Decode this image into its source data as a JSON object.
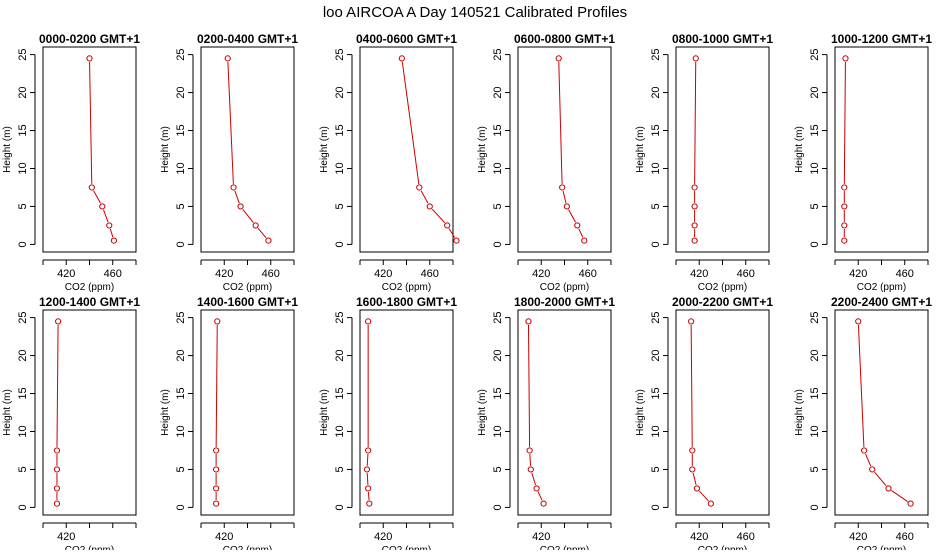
{
  "figure": {
    "title": "loo AIRCOA A  Day 140521  Calibrated Profiles",
    "line_color": "#cc0000"
  },
  "chart_data": [
    {
      "type": "line",
      "title": "0000-0200 GMT+1",
      "xlabel": "CO2 (ppm)",
      "ylabel": "Height (m)",
      "xlim": [
        400,
        480
      ],
      "ylim": [
        0,
        25
      ],
      "xticks": [
        420,
        460
      ],
      "yticks": [
        0,
        5,
        10,
        15,
        20,
        25
      ],
      "x": [
        440,
        442,
        451,
        457,
        461
      ],
      "y": [
        24.5,
        7.5,
        5,
        2.5,
        0.5
      ]
    },
    {
      "type": "line",
      "title": "0200-0400 GMT+1",
      "xlabel": "CO2 (ppm)",
      "ylabel": "Height (m)",
      "xlim": [
        400,
        480
      ],
      "ylim": [
        0,
        25
      ],
      "xticks": [
        420,
        460
      ],
      "yticks": [
        0,
        5,
        10,
        15,
        20,
        25
      ],
      "x": [
        423,
        428,
        434,
        447,
        458
      ],
      "y": [
        24.5,
        7.5,
        5,
        2.5,
        0.5
      ]
    },
    {
      "type": "line",
      "title": "0400-0600 GMT+1",
      "xlabel": "CO2 (ppm)",
      "ylabel": "Height (m)",
      "xlim": [
        400,
        480
      ],
      "ylim": [
        0,
        25
      ],
      "xticks": [
        420,
        460
      ],
      "yticks": [
        0,
        5,
        10,
        15,
        20,
        25
      ],
      "x": [
        436,
        451,
        460,
        475,
        483
      ],
      "y": [
        24.5,
        7.5,
        5,
        2.5,
        0.5
      ]
    },
    {
      "type": "line",
      "title": "0600-0800 GMT+1",
      "xlabel": "CO2 (ppm)",
      "ylabel": "Height (m)",
      "xlim": [
        400,
        480
      ],
      "ylim": [
        0,
        25
      ],
      "xticks": [
        420,
        460
      ],
      "yticks": [
        0,
        5,
        10,
        15,
        20,
        25
      ],
      "x": [
        435,
        438,
        442,
        451,
        457
      ],
      "y": [
        24.5,
        7.5,
        5,
        2.5,
        0.5
      ]
    },
    {
      "type": "line",
      "title": "0800-1000 GMT+1",
      "xlabel": "CO2 (ppm)",
      "ylabel": "Height (m)",
      "xlim": [
        400,
        480
      ],
      "ylim": [
        0,
        25
      ],
      "xticks": [
        420,
        460
      ],
      "yticks": [
        0,
        5,
        10,
        15,
        20,
        25
      ],
      "x": [
        417,
        416,
        416,
        416,
        416
      ],
      "y": [
        24.5,
        7.5,
        5,
        2.5,
        0.5
      ]
    },
    {
      "type": "line",
      "title": "1000-1200 GMT+1",
      "xlabel": "CO2 (ppm)",
      "ylabel": "Height (m)",
      "xlim": [
        400,
        480
      ],
      "ylim": [
        0,
        25
      ],
      "xticks": [
        420,
        460
      ],
      "yticks": [
        0,
        5,
        10,
        15,
        20,
        25
      ],
      "x": [
        409,
        408,
        408,
        408,
        408
      ],
      "y": [
        24.5,
        7.5,
        5,
        2.5,
        0.5
      ]
    },
    {
      "type": "line",
      "title": "1200-1400 GMT+1",
      "xlabel": "CO2 (ppm)",
      "ylabel": "Height (m)",
      "xlim": [
        400,
        480
      ],
      "ylim": [
        0,
        25
      ],
      "xticks": [
        420
      ],
      "yticks": [
        0,
        5,
        10,
        15,
        20,
        25
      ],
      "x": [
        413,
        412,
        412,
        412,
        412
      ],
      "y": [
        24.5,
        7.5,
        5,
        2.5,
        0.5
      ]
    },
    {
      "type": "line",
      "title": "1400-1600 GMT+1",
      "xlabel": "CO2 (ppm)",
      "ylabel": "Height (m)",
      "xlim": [
        400,
        480
      ],
      "ylim": [
        0,
        25
      ],
      "xticks": [
        420
      ],
      "yticks": [
        0,
        5,
        10,
        15,
        20,
        25
      ],
      "x": [
        414,
        413,
        413,
        413,
        413
      ],
      "y": [
        24.5,
        7.5,
        5,
        2.5,
        0.5
      ]
    },
    {
      "type": "line",
      "title": "1600-1800 GMT+1",
      "xlabel": "CO2 (ppm)",
      "ylabel": "Height (m)",
      "xlim": [
        400,
        480
      ],
      "ylim": [
        0,
        25
      ],
      "xticks": [
        420
      ],
      "yticks": [
        0,
        5,
        10,
        15,
        20,
        25
      ],
      "x": [
        407,
        407,
        406,
        407,
        408
      ],
      "y": [
        24.5,
        7.5,
        5,
        2.5,
        0.5
      ]
    },
    {
      "type": "line",
      "title": "1800-2000 GMT+1",
      "xlabel": "CO2 (ppm)",
      "ylabel": "Height (m)",
      "xlim": [
        400,
        480
      ],
      "ylim": [
        0,
        25
      ],
      "xticks": [
        420
      ],
      "yticks": [
        0,
        5,
        10,
        15,
        20,
        25
      ],
      "x": [
        409,
        410,
        411,
        416,
        422
      ],
      "y": [
        24.5,
        7.5,
        5,
        2.5,
        0.5
      ]
    },
    {
      "type": "line",
      "title": "2000-2200 GMT+1",
      "xlabel": "CO2 (ppm)",
      "ylabel": "Height (m)",
      "xlim": [
        400,
        480
      ],
      "ylim": [
        0,
        25
      ],
      "xticks": [
        420,
        460
      ],
      "yticks": [
        0,
        5,
        10,
        15,
        20,
        25
      ],
      "x": [
        413,
        414,
        414,
        418,
        430
      ],
      "y": [
        24.5,
        7.5,
        5,
        2.5,
        0.5
      ]
    },
    {
      "type": "line",
      "title": "2200-2400 GMT+1",
      "xlabel": "CO2 (ppm)",
      "ylabel": "Height (m)",
      "xlim": [
        400,
        480
      ],
      "ylim": [
        0,
        25
      ],
      "xticks": [
        420,
        460
      ],
      "yticks": [
        0,
        5,
        10,
        15,
        20,
        25
      ],
      "x": [
        420,
        425,
        432,
        446,
        465
      ],
      "y": [
        24.5,
        7.5,
        5,
        2.5,
        0.5
      ]
    }
  ]
}
